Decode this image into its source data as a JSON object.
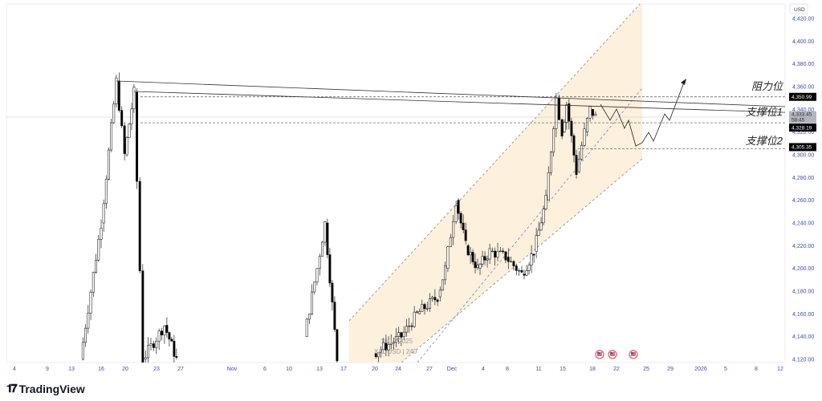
{
  "chart_data": {
    "type": "candlestick",
    "title": "",
    "currency": "USD",
    "y_ticks": [
      4120,
      4140,
      4160,
      4180,
      4200,
      4220,
      4240,
      4260,
      4280,
      4300,
      4320,
      4340,
      4360,
      4380,
      4400,
      4420
    ],
    "ylim": [
      4118,
      4430
    ],
    "x_ticks": [
      "4",
      "9",
      "13",
      "16",
      "20",
      "23",
      "27",
      "Nov",
      "6",
      "10",
      "13",
      "17",
      "20",
      "24",
      "27",
      "Dec",
      "4",
      "8",
      "11",
      "15",
      "18",
      "22",
      "25",
      "29",
      "2026",
      "5",
      "8",
      "12"
    ],
    "price_path": [
      [
        2.3,
        4120
      ],
      [
        3.0,
        4240
      ],
      [
        3.63,
        4365
      ],
      [
        3.97,
        4300
      ],
      [
        4.28,
        4355
      ],
      [
        4.56,
        4120
      ],
      [
        5.33,
        4150
      ],
      [
        5.83,
        4120
      ],
      [
        9.5,
        4140
      ],
      [
        9.92,
        4200
      ],
      [
        10.23,
        4240
      ],
      [
        10.73,
        4120
      ],
      [
        11.95,
        4125
      ],
      [
        13.1,
        4140
      ],
      [
        13.6,
        4160
      ],
      [
        14.36,
        4175
      ],
      [
        14.7,
        4200
      ],
      [
        15.13,
        4260
      ],
      [
        15.44,
        4220
      ],
      [
        15.82,
        4200
      ],
      [
        16.27,
        4215
      ],
      [
        16.93,
        4210
      ],
      [
        17.46,
        4195
      ],
      [
        17.85,
        4215
      ],
      [
        18.3,
        4260
      ],
      [
        18.73,
        4350
      ],
      [
        18.97,
        4320
      ],
      [
        19.13,
        4345
      ],
      [
        19.46,
        4285
      ],
      [
        19.73,
        4320
      ],
      [
        19.92,
        4340
      ],
      [
        20.13,
        4333.45
      ]
    ],
    "levels": [
      {
        "label": "阻力位",
        "price": 4350.99,
        "tag": "4,350.99"
      },
      {
        "label": "支撑位1",
        "price": 4328.19,
        "tag": "4,328.19"
      },
      {
        "label": "支撑位2",
        "price": 4305.35,
        "tag": "4,305.35"
      }
    ],
    "last_price": {
      "price": 4333.45,
      "tag": "4,333.45",
      "countdown": "58:45"
    },
    "channel": "ascending parallel channel (orange fill)",
    "watermark": {
      "date": "18/12/2025",
      "symbol": "XAUUSD | 240"
    },
    "event_flags": [
      "us-flag",
      "us-flag",
      "us-flag"
    ],
    "colors": {
      "channel_fill": "#fdf0dc",
      "channel_line": "#777777",
      "midline": "#6a7fd6",
      "axis_text": "#3b4db0",
      "candle": "#000000"
    }
  },
  "footer": {
    "brand": "TradingView"
  }
}
